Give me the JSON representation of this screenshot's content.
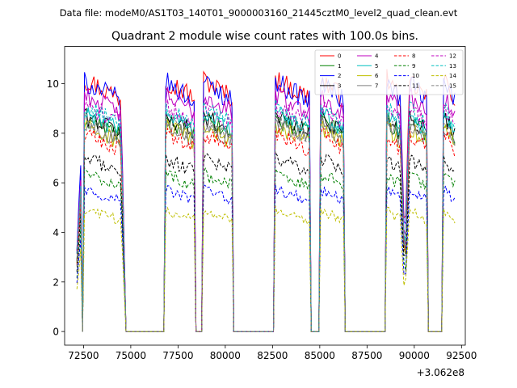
{
  "suptitle": "Data file: modeM0/AS1T03_140T01_9000003160_21445cztM0_level2_quad_clean.evt",
  "chart_data": {
    "type": "line",
    "title": "Quadrant 2 module wise count rates with 100.0s bins.",
    "xlabel": "",
    "ylabel": "",
    "x_offset_label": "+3.062e8",
    "xlim": [
      71500,
      92700
    ],
    "ylim": [
      -0.55,
      11.5
    ],
    "x_ticks": [
      72500,
      75000,
      77500,
      80000,
      82500,
      85000,
      87500,
      90000,
      92500
    ],
    "x_tick_labels": [
      "72500",
      "75000",
      "77500",
      "80000",
      "82500",
      "85000",
      "87500",
      "90000",
      "92500"
    ],
    "y_ticks": [
      0,
      2,
      4,
      6,
      8,
      10
    ],
    "y_tick_labels": [
      "0",
      "2",
      "4",
      "6",
      "8",
      "10"
    ],
    "legend_location": "upper right",
    "legend_columns": 4,
    "segments": [
      {
        "start": 72150,
        "end": 72350,
        "shape": "edge-up"
      },
      {
        "start": 72550,
        "end": 74500,
        "shape": "plateau"
      },
      {
        "start": 74500,
        "end": 74750,
        "shape": "edge-down"
      },
      {
        "start": 76850,
        "end": 78400,
        "shape": "plateau"
      },
      {
        "start": 78800,
        "end": 80400,
        "shape": "plateau"
      },
      {
        "start": 82650,
        "end": 84450,
        "shape": "plateau"
      },
      {
        "start": 85050,
        "end": 86250,
        "shape": "plateau"
      },
      {
        "start": 88550,
        "end": 89300,
        "shape": "plateau"
      },
      {
        "start": 89300,
        "end": 89700,
        "shape": "dip"
      },
      {
        "start": 89700,
        "end": 90650,
        "shape": "plateau"
      },
      {
        "start": 91550,
        "end": 92150,
        "shape": "plateau"
      }
    ],
    "series": [
      {
        "name": "0",
        "color": "#ff0000",
        "dash": "solid",
        "level": 9.6
      },
      {
        "name": "1",
        "color": "#008000",
        "dash": "solid",
        "level": 8.1
      },
      {
        "name": "2",
        "color": "#0000ff",
        "dash": "solid",
        "level": 9.5
      },
      {
        "name": "3",
        "color": "#000000",
        "dash": "solid",
        "level": 8.2
      },
      {
        "name": "4",
        "color": "#bf00bf",
        "dash": "solid",
        "level": 9.0
      },
      {
        "name": "5",
        "color": "#00bfbf",
        "dash": "solid",
        "level": 8.3
      },
      {
        "name": "6",
        "color": "#bfbf00",
        "dash": "solid",
        "level": 7.8
      },
      {
        "name": "7",
        "color": "#808080",
        "dash": "solid",
        "level": 7.9
      },
      {
        "name": "8",
        "color": "#ff0000",
        "dash": "dashed",
        "level": 7.5
      },
      {
        "name": "9",
        "color": "#008000",
        "dash": "dashed",
        "level": 6.0
      },
      {
        "name": "10",
        "color": "#0000ff",
        "dash": "dashed",
        "level": 5.4
      },
      {
        "name": "11",
        "color": "#000000",
        "dash": "dashed",
        "level": 6.6
      },
      {
        "name": "12",
        "color": "#bf00bf",
        "dash": "dashed",
        "level": 8.6
      },
      {
        "name": "13",
        "color": "#00bfbf",
        "dash": "dashed",
        "level": 8.5
      },
      {
        "name": "14",
        "color": "#bfbf00",
        "dash": "dashed",
        "level": 4.6
      },
      {
        "name": "15",
        "color": "#808080",
        "dash": "dashed",
        "level": 8.0
      }
    ]
  }
}
